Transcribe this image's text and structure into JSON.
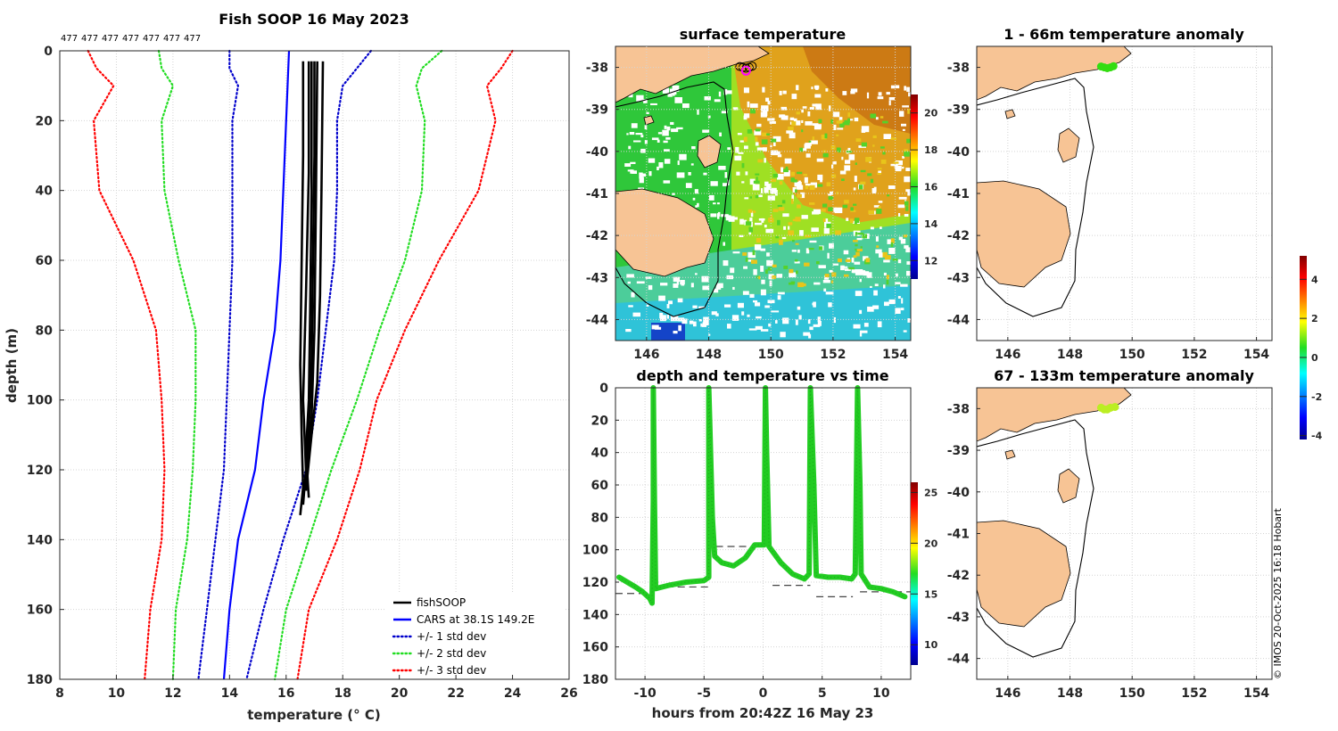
{
  "figure_title": "Fish SOOP 16 May 2023",
  "copyright": "© IMOS 20-Oct-2025 16:18 Hobart",
  "colors": {
    "fishsoop": "#000000",
    "cars": "#0000ff",
    "std1": "#0000cc",
    "std2": "#22dd22",
    "std3": "#ff0000",
    "land": "#f7c495",
    "track": "#22cc22",
    "anom1": "#33dd11",
    "anom2": "#bbee22"
  },
  "chart_data": [
    {
      "id": "profile",
      "type": "line",
      "title": "Fish SOOP 16 May 2023",
      "xlabel": "temperature (° C)",
      "ylabel": "depth (m)",
      "xlim": [
        8,
        26
      ],
      "ylim": [
        0,
        180
      ],
      "y_reversed": true,
      "xticks": [
        8,
        10,
        12,
        14,
        16,
        18,
        20,
        22,
        24,
        26
      ],
      "yticks": [
        0,
        20,
        40,
        60,
        80,
        100,
        120,
        140,
        160,
        180
      ],
      "grid": true,
      "legend_position": "bottom-right",
      "top_counts": [
        "477",
        "477",
        "477",
        "477",
        "477",
        "477",
        "477"
      ],
      "series": [
        {
          "name": "fishSOOP",
          "style": "solid-black",
          "casts": [
            [
              [
                16.6,
                3
              ],
              [
                16.6,
                30
              ],
              [
                16.55,
                60
              ],
              [
                16.5,
                90
              ],
              [
                16.55,
                110
              ],
              [
                16.6,
                125
              ],
              [
                16.5,
                133
              ]
            ],
            [
              [
                16.8,
                3
              ],
              [
                16.8,
                35
              ],
              [
                16.7,
                70
              ],
              [
                16.6,
                100
              ],
              [
                16.7,
                120
              ],
              [
                16.6,
                130
              ]
            ],
            [
              [
                16.9,
                3
              ],
              [
                16.9,
                40
              ],
              [
                16.85,
                75
              ],
              [
                16.8,
                100
              ],
              [
                16.7,
                115
              ],
              [
                16.8,
                128
              ]
            ],
            [
              [
                17.0,
                3
              ],
              [
                17.0,
                30
              ],
              [
                16.95,
                60
              ],
              [
                16.9,
                90
              ],
              [
                16.8,
                108
              ],
              [
                16.7,
                122
              ]
            ],
            [
              [
                17.1,
                3
              ],
              [
                17.05,
                45
              ],
              [
                17.0,
                80
              ],
              [
                16.9,
                105
              ],
              [
                16.75,
                118
              ]
            ],
            [
              [
                17.3,
                3
              ],
              [
                17.25,
                40
              ],
              [
                17.2,
                70
              ],
              [
                17.1,
                95
              ],
              [
                16.9,
                110
              ],
              [
                16.7,
                126
              ]
            ]
          ]
        },
        {
          "name": "CARS at 38.1S 149.2E",
          "style": "solid-blue",
          "points": [
            [
              16.1,
              0
            ],
            [
              16.0,
              20
            ],
            [
              15.9,
              40
            ],
            [
              15.8,
              60
            ],
            [
              15.6,
              80
            ],
            [
              15.2,
              100
            ],
            [
              14.9,
              120
            ],
            [
              14.3,
              140
            ],
            [
              14.0,
              160
            ],
            [
              13.8,
              180
            ]
          ]
        },
        {
          "name": "+/- 1 std dev",
          "style": "dotted-blue",
          "lower": [
            [
              14.0,
              0
            ],
            [
              14.0,
              5
            ],
            [
              14.3,
              10
            ],
            [
              14.1,
              20
            ],
            [
              14.1,
              40
            ],
            [
              14.1,
              60
            ],
            [
              14.0,
              80
            ],
            [
              13.9,
              100
            ],
            [
              13.8,
              120
            ],
            [
              13.5,
              140
            ],
            [
              13.2,
              160
            ],
            [
              12.9,
              180
            ]
          ],
          "upper": [
            [
              19.0,
              0
            ],
            [
              18.5,
              5
            ],
            [
              18.0,
              10
            ],
            [
              17.8,
              20
            ],
            [
              17.8,
              40
            ],
            [
              17.7,
              60
            ],
            [
              17.4,
              80
            ],
            [
              17.1,
              100
            ],
            [
              16.7,
              120
            ],
            [
              15.9,
              140
            ],
            [
              15.2,
              160
            ],
            [
              14.6,
              180
            ]
          ]
        },
        {
          "name": "+/- 2 std dev",
          "style": "dotted-green",
          "lower": [
            [
              11.5,
              0
            ],
            [
              11.6,
              5
            ],
            [
              12.0,
              10
            ],
            [
              11.6,
              20
            ],
            [
              11.7,
              40
            ],
            [
              12.2,
              60
            ],
            [
              12.8,
              80
            ],
            [
              12.8,
              100
            ],
            [
              12.7,
              120
            ],
            [
              12.5,
              140
            ],
            [
              12.1,
              160
            ],
            [
              12.0,
              180
            ]
          ],
          "upper": [
            [
              21.5,
              0
            ],
            [
              20.8,
              5
            ],
            [
              20.6,
              10
            ],
            [
              20.9,
              20
            ],
            [
              20.8,
              40
            ],
            [
              20.2,
              60
            ],
            [
              19.3,
              80
            ],
            [
              18.5,
              100
            ],
            [
              17.6,
              120
            ],
            [
              16.8,
              140
            ],
            [
              16.0,
              160
            ],
            [
              15.6,
              180
            ]
          ]
        },
        {
          "name": "+/- 3 std dev",
          "style": "dotted-red",
          "lower": [
            [
              9.0,
              0
            ],
            [
              9.3,
              5
            ],
            [
              9.9,
              10
            ],
            [
              9.2,
              20
            ],
            [
              9.4,
              40
            ],
            [
              10.6,
              60
            ],
            [
              11.4,
              80
            ],
            [
              11.6,
              100
            ],
            [
              11.7,
              120
            ],
            [
              11.6,
              140
            ],
            [
              11.2,
              160
            ],
            [
              11.0,
              180
            ]
          ],
          "upper": [
            [
              24.0,
              0
            ],
            [
              23.6,
              5
            ],
            [
              23.1,
              10
            ],
            [
              23.4,
              20
            ],
            [
              22.8,
              40
            ],
            [
              21.4,
              60
            ],
            [
              20.2,
              80
            ],
            [
              19.2,
              100
            ],
            [
              18.6,
              120
            ],
            [
              17.8,
              140
            ],
            [
              16.8,
              160
            ],
            [
              16.4,
              180
            ]
          ]
        }
      ],
      "legend": [
        "fishSOOP",
        "CARS at 38.1S 149.2E",
        "+/- 1 std dev",
        "+/- 2 std dev",
        "+/- 3 std dev"
      ]
    },
    {
      "id": "sst_map",
      "type": "heatmap",
      "title": "surface temperature",
      "xlim": [
        145,
        154.5
      ],
      "ylim": [
        -44.5,
        -37.5
      ],
      "xticks": [
        146,
        148,
        150,
        152,
        154
      ],
      "yticks": [
        -38,
        -39,
        -40,
        -41,
        -42,
        -43,
        -44
      ],
      "colorbar": {
        "min": 11,
        "max": 21,
        "ticks": [
          12,
          14,
          16,
          18,
          20
        ]
      },
      "grid": true
    },
    {
      "id": "depth_time",
      "type": "scatter",
      "title": "depth and temperature vs time",
      "xlabel": "hours from 20:42Z 16 May 23",
      "xlim": [
        -12.5,
        12.5
      ],
      "ylim": [
        0,
        180
      ],
      "y_reversed": true,
      "xticks": [
        -10,
        -5,
        0,
        5,
        10
      ],
      "yticks": [
        0,
        20,
        40,
        60,
        80,
        100,
        120,
        140,
        160,
        180
      ],
      "colorbar": {
        "min": 8,
        "max": 26,
        "ticks": [
          10,
          15,
          20,
          25
        ]
      },
      "track": [
        [
          -12.2,
          117
        ],
        [
          -11.5,
          120
        ],
        [
          -10.8,
          123
        ],
        [
          -10.2,
          126
        ],
        [
          -9.6,
          130
        ],
        [
          -9.4,
          133
        ],
        [
          -9.3,
          70
        ],
        [
          -9.3,
          0
        ],
        [
          -9.2,
          70
        ],
        [
          -9.1,
          124
        ],
        [
          -8,
          122
        ],
        [
          -6.5,
          120
        ],
        [
          -5,
          119
        ],
        [
          -4.6,
          117
        ],
        [
          -4.6,
          0
        ],
        [
          -4.3,
          80
        ],
        [
          -4.1,
          104
        ],
        [
          -3.5,
          108
        ],
        [
          -2.5,
          110
        ],
        [
          -1.5,
          105
        ],
        [
          -0.7,
          97
        ],
        [
          -0.3,
          97
        ],
        [
          0.1,
          97
        ],
        [
          0.2,
          0
        ],
        [
          0.3,
          40
        ],
        [
          0.5,
          98
        ],
        [
          1.5,
          108
        ],
        [
          2.5,
          115
        ],
        [
          3.5,
          118
        ],
        [
          3.9,
          115
        ],
        [
          4.0,
          0
        ],
        [
          4.3,
          60
        ],
        [
          4.5,
          116
        ],
        [
          5.5,
          117
        ],
        [
          6.5,
          117
        ],
        [
          7.5,
          118
        ],
        [
          7.8,
          115
        ],
        [
          8.0,
          0
        ],
        [
          8.2,
          60
        ],
        [
          8.3,
          115
        ],
        [
          9,
          123
        ],
        [
          10,
          124
        ],
        [
          11,
          126
        ],
        [
          12,
          129
        ]
      ],
      "bottom_segments": [
        [
          -12.5,
          -9.5,
          127
        ],
        [
          -9.2,
          -4.5,
          123
        ],
        [
          -4.0,
          0.0,
          98
        ],
        [
          0.8,
          4.0,
          122
        ],
        [
          4.5,
          7.6,
          129
        ],
        [
          8.2,
          12.5,
          126
        ]
      ]
    },
    {
      "id": "anom_shallow",
      "type": "scatter",
      "title": "1 - 66m temperature anomaly",
      "xlim": [
        145,
        154.5
      ],
      "ylim": [
        -44.5,
        -37.5
      ],
      "xticks": [
        146,
        148,
        150,
        152,
        154
      ],
      "yticks": [
        -38,
        -39,
        -40,
        -41,
        -42,
        -43,
        -44
      ],
      "points": [
        [
          149.0,
          -37.98
        ],
        [
          149.1,
          -38.0
        ],
        [
          149.2,
          -38.02
        ],
        [
          149.3,
          -38.0
        ],
        [
          149.4,
          -37.97
        ]
      ]
    },
    {
      "id": "anom_deep",
      "type": "scatter",
      "title": "67 - 133m temperature anomaly",
      "xlim": [
        145,
        154.5
      ],
      "ylim": [
        -44.5,
        -37.5
      ],
      "xticks": [
        146,
        148,
        150,
        152,
        154
      ],
      "yticks": [
        -38,
        -39,
        -40,
        -41,
        -42,
        -43,
        -44
      ],
      "points": [
        [
          149.0,
          -37.98
        ],
        [
          149.1,
          -38.02
        ],
        [
          149.2,
          -38.02
        ],
        [
          149.3,
          -37.98
        ],
        [
          149.45,
          -37.96
        ]
      ]
    },
    {
      "id": "anom_colorbar",
      "type": "heatmap",
      "colorbar": {
        "min": -4.2,
        "max": 5.2,
        "ticks": [
          4,
          2,
          0,
          -2,
          -4
        ]
      }
    }
  ]
}
